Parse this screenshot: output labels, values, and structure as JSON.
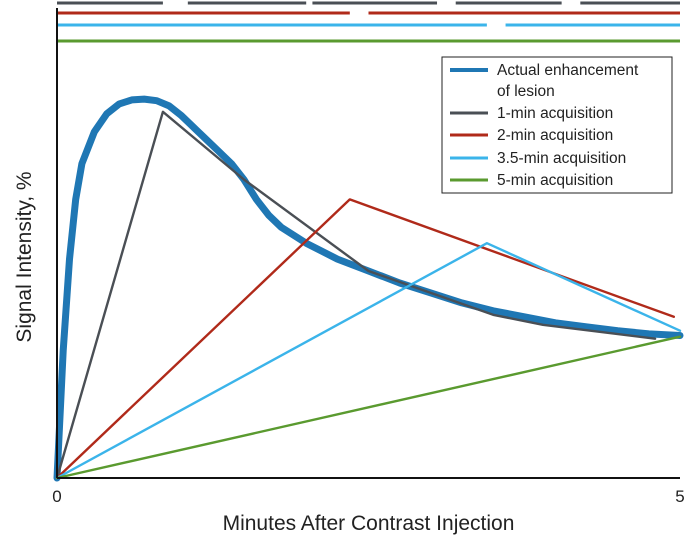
{
  "chart_data": {
    "type": "line",
    "title": "",
    "xlabel": "Minutes After Contrast Injection",
    "ylabel": "Signal Intensity, %",
    "xlim": [
      0,
      5
    ],
    "ylim": [
      0,
      100
    ],
    "x_ticks": [
      "0",
      "5"
    ],
    "grid": false,
    "legend_position": "top-right",
    "series": [
      {
        "name": "Actual enhancement of lesion",
        "color": "#1f77b4",
        "style": "thick",
        "points": [
          [
            0,
            0
          ],
          [
            0.05,
            32
          ],
          [
            0.1,
            55
          ],
          [
            0.15,
            70
          ],
          [
            0.2,
            79
          ],
          [
            0.3,
            87
          ],
          [
            0.4,
            91.5
          ],
          [
            0.5,
            94
          ],
          [
            0.6,
            95
          ],
          [
            0.7,
            95.2
          ],
          [
            0.8,
            94.8
          ],
          [
            0.9,
            93.5
          ],
          [
            1.0,
            91
          ],
          [
            1.1,
            88
          ],
          [
            1.2,
            85
          ],
          [
            1.3,
            82
          ],
          [
            1.4,
            79
          ],
          [
            1.5,
            75
          ],
          [
            1.6,
            70
          ],
          [
            1.7,
            66
          ],
          [
            1.8,
            63
          ],
          [
            2.0,
            59
          ],
          [
            2.25,
            55
          ],
          [
            2.5,
            52
          ],
          [
            2.75,
            49
          ],
          [
            3.0,
            46.5
          ],
          [
            3.25,
            44
          ],
          [
            3.5,
            42
          ],
          [
            3.75,
            40.5
          ],
          [
            4.0,
            39
          ],
          [
            4.25,
            38
          ],
          [
            4.5,
            37
          ],
          [
            4.75,
            36.2
          ],
          [
            5.0,
            35.8
          ]
        ]
      },
      {
        "name": "1-min acquisition",
        "color": "#4a4f55",
        "style": "thin",
        "points": [
          [
            0,
            0
          ],
          [
            0.85,
            92
          ],
          [
            1.5,
            75
          ],
          [
            2.5,
            52
          ],
          [
            3.5,
            41
          ],
          [
            3.9,
            38.5
          ],
          [
            4.8,
            35
          ]
        ]
      },
      {
        "name": "2-min acquisition",
        "color": "#b02a1a",
        "style": "thin",
        "points": [
          [
            0,
            0
          ],
          [
            2.35,
            70
          ],
          [
            4.95,
            40.5
          ]
        ]
      },
      {
        "name": "3.5-min acquisition",
        "color": "#3bb4ea",
        "style": "thin",
        "points": [
          [
            0,
            0
          ],
          [
            3.45,
            59
          ],
          [
            5.0,
            37
          ]
        ]
      },
      {
        "name": "5-min acquisition",
        "color": "#5a9a2f",
        "style": "thin",
        "points": [
          [
            0,
            0
          ],
          [
            5.0,
            35.5
          ]
        ]
      }
    ],
    "timing_bars": [
      {
        "color": "#4a4f55",
        "segments": [
          [
            0,
            0.85
          ],
          [
            1.05,
            2.0
          ],
          [
            2.05,
            3.05
          ],
          [
            3.2,
            4.05
          ],
          [
            4.2,
            5.0
          ]
        ]
      },
      {
        "color": "#b02a1a",
        "segments": [
          [
            0,
            2.35
          ],
          [
            2.5,
            5.0
          ]
        ]
      },
      {
        "color": "#3bb4ea",
        "segments": [
          [
            0,
            3.45
          ],
          [
            3.6,
            5.0
          ]
        ]
      },
      {
        "color": "#5a9a2f",
        "segments": [
          [
            0,
            5.0
          ]
        ]
      }
    ]
  }
}
